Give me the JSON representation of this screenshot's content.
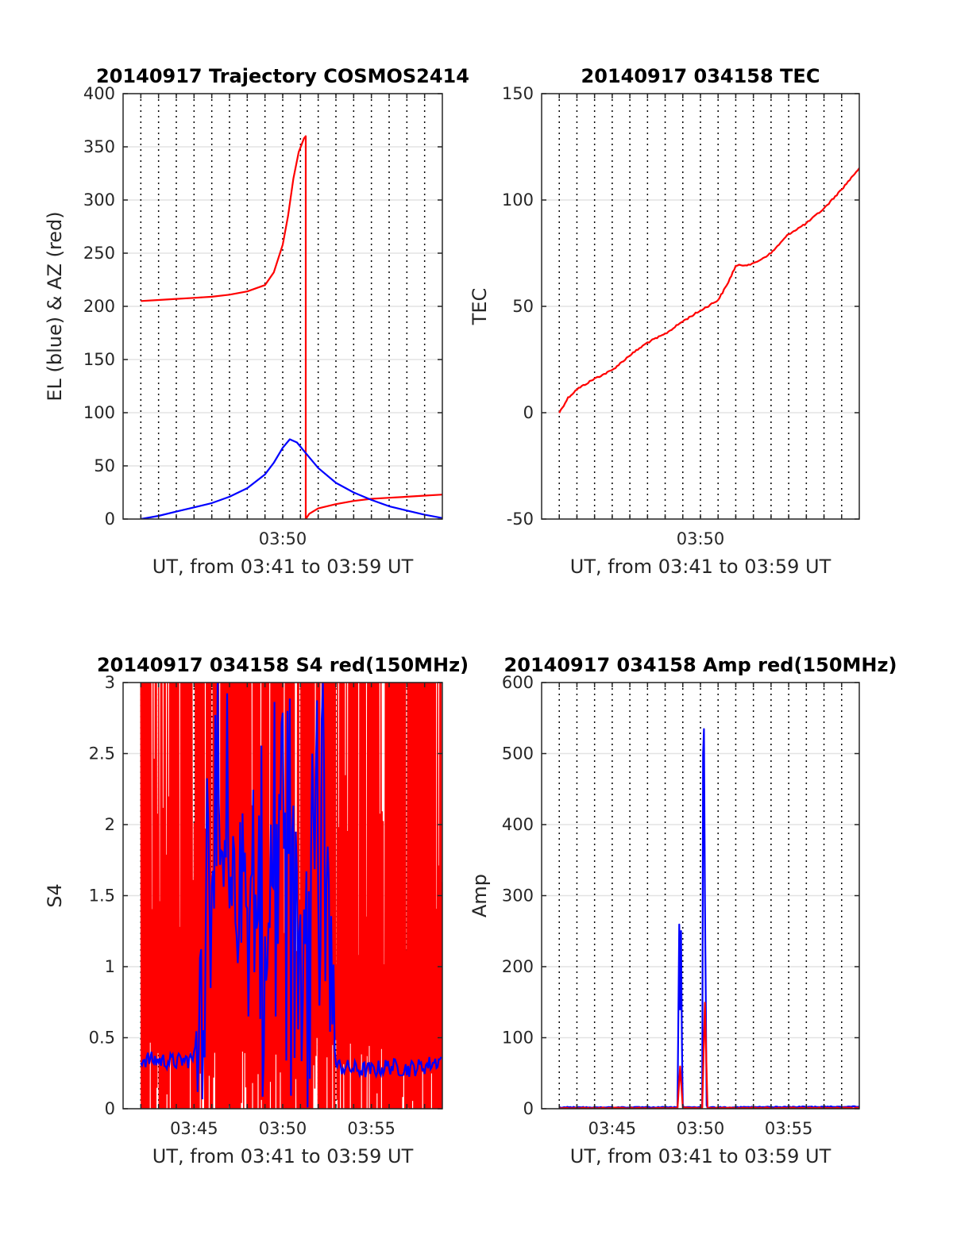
{
  "chart_data": [
    {
      "type": "line",
      "title": "20140917 Trajectory COSMOS2414",
      "xlabel": "UT, from 03:41 to 03:59 UT",
      "ylabel": "EL (blue) & AZ (red)",
      "xlim": [
        "03:41",
        "03:59"
      ],
      "ylim": [
        0,
        400
      ],
      "xticks": [
        "03:50"
      ],
      "yticks": [
        "0",
        "50",
        "100",
        "150",
        "200",
        "250",
        "300",
        "350",
        "400"
      ],
      "grid": true,
      "series": [
        {
          "color": "#ff0000",
          "x": [
            "03:42",
            "03:43",
            "03:44",
            "03:45",
            "03:46",
            "03:47",
            "03:48",
            "03:49",
            "03:49.5",
            "03:50",
            "03:50.3",
            "03:50.6",
            "03:50.9",
            "03:51.2",
            "03:51.3",
            "03:51.3",
            "03:51.5",
            "03:52",
            "03:53",
            "03:54",
            "03:55",
            "03:56",
            "03:57",
            "03:58",
            "03:59"
          ],
          "values": [
            205,
            206,
            207,
            208,
            209,
            211,
            214,
            220,
            232,
            258,
            285,
            320,
            345,
            358,
            360,
            0,
            5,
            10,
            14,
            17,
            19,
            20,
            21,
            22,
            23
          ]
        },
        {
          "color": "#0000ff",
          "x": [
            "03:42",
            "03:43",
            "03:44",
            "03:45",
            "03:46",
            "03:47",
            "03:48",
            "03:49",
            "03:49.5",
            "03:50",
            "03:50.4",
            "03:50.8",
            "03:51.5",
            "03:52",
            "03:53",
            "03:54",
            "03:55",
            "03:56",
            "03:57",
            "03:58",
            "03:59"
          ],
          "values": [
            0,
            3,
            7,
            11,
            15,
            21,
            29,
            42,
            53,
            67,
            75,
            72,
            58,
            48,
            34,
            25,
            18,
            12,
            8,
            4,
            1
          ]
        }
      ]
    },
    {
      "type": "line",
      "title": "20140917 034158 TEC",
      "xlabel": "UT, from 03:41 to 03:59 UT",
      "ylabel": "TEC",
      "xlim": [
        "03:41",
        "03:59"
      ],
      "ylim": [
        -50,
        150
      ],
      "xticks": [
        "03:50"
      ],
      "yticks": [
        "-50",
        "0",
        "50",
        "100",
        "150"
      ],
      "grid": true,
      "series": [
        {
          "color": "#ff0000",
          "x": [
            "03:42",
            "03:42.5",
            "03:43",
            "03:44",
            "03:45",
            "03:46",
            "03:47",
            "03:48",
            "03:49",
            "03:50",
            "03:51",
            "03:51.5",
            "03:52",
            "03:53",
            "03:54",
            "03:55",
            "03:56",
            "03:57",
            "03:58",
            "03:59"
          ],
          "values": [
            0,
            7,
            11,
            16,
            20,
            27,
            33,
            37,
            43,
            48,
            53,
            60,
            69,
            70,
            75,
            84,
            89,
            96,
            105,
            115
          ]
        }
      ]
    },
    {
      "type": "line",
      "title": "20140917 034158 S4 red(150MHz)",
      "xlabel": "UT, from 03:41 to 03:59 UT",
      "ylabel": "S4",
      "xlim": [
        "03:41",
        "03:59"
      ],
      "ylim": [
        0,
        3
      ],
      "xticks": [
        "03:45",
        "03:50",
        "03:55"
      ],
      "yticks": [
        "0",
        "0.5",
        "1",
        "1.5",
        "2",
        "2.5",
        "3"
      ],
      "grid": true,
      "series": [
        {
          "color": "#ff0000",
          "description_values": "dense oscillation spanning 0 to 3 for most of the interval",
          "x": [
            "03:42",
            "03:45",
            "03:48",
            "03:51",
            "03:54",
            "03:57",
            "03:59"
          ],
          "values": [
            3,
            0,
            3,
            0,
            3,
            0,
            3
          ]
        },
        {
          "color": "#0000ff",
          "x": [
            "03:42",
            "03:43",
            "03:44",
            "03:45",
            "03:46",
            "03:47",
            "03:48",
            "03:49",
            "03:50",
            "03:51",
            "03:52",
            "03:53",
            "03:54",
            "03:55",
            "03:56",
            "03:57",
            "03:58",
            "03:59"
          ],
          "values": [
            0.35,
            0.34,
            0.33,
            0.35,
            2.0,
            1.2,
            1.8,
            0.8,
            2.5,
            1.2,
            2.8,
            0.3,
            0.28,
            0.27,
            0.3,
            0.28,
            0.3,
            0.35
          ]
        }
      ]
    },
    {
      "type": "line",
      "title": "20140917 034158 Amp red(150MHz)",
      "xlabel": "UT, from 03:41 to 03:59 UT",
      "ylabel": "Amp",
      "xlim": [
        "03:41",
        "03:59"
      ],
      "ylim": [
        0,
        600
      ],
      "xticks": [
        "03:45",
        "03:50",
        "03:55"
      ],
      "yticks": [
        "0",
        "100",
        "200",
        "300",
        "400",
        "500",
        "600"
      ],
      "grid": true,
      "series": [
        {
          "color": "#0000ff",
          "x": [
            "03:42",
            "03:48.7",
            "03:48.8",
            "03:48.85",
            "03:48.9",
            "03:48.95",
            "03:49.0",
            "03:49.1",
            "03:50.1",
            "03:50.15",
            "03:50.2",
            "03:50.25",
            "03:50.3",
            "03:50.35",
            "03:50.4",
            "03:59"
          ],
          "values": [
            2,
            2,
            260,
            140,
            250,
            90,
            3,
            2,
            2,
            500,
            535,
            300,
            160,
            5,
            2,
            3
          ]
        },
        {
          "color": "#ff0000",
          "x": [
            "03:42",
            "03:48.7",
            "03:48.85",
            "03:49.0",
            "03:50.1",
            "03:50.25",
            "03:50.4",
            "03:59"
          ],
          "values": [
            1,
            1,
            60,
            1,
            1,
            150,
            1,
            1
          ]
        }
      ]
    }
  ]
}
